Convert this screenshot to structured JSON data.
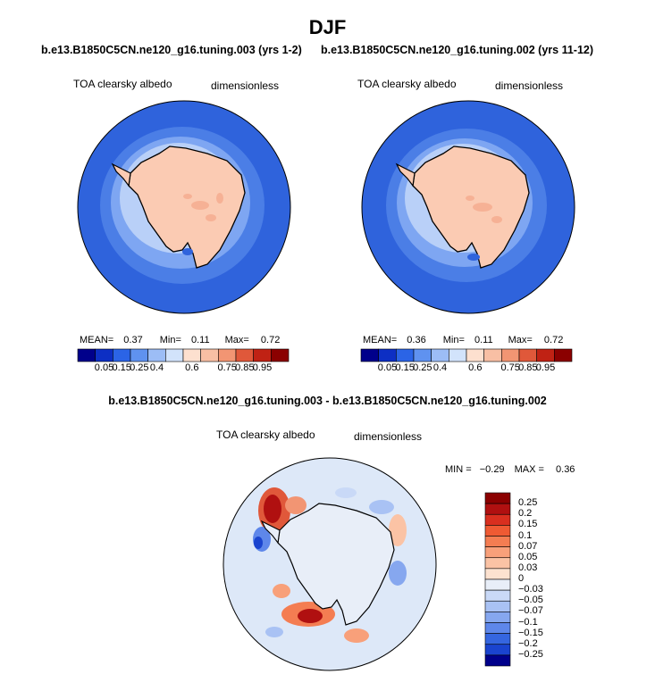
{
  "page": {
    "title": "DJF"
  },
  "panels": [
    {
      "case": "b.e13.B1850C5CN.ne120_g16.tuning.003 (yrs 1-2)",
      "variable": "TOA clearsky albedo",
      "units": "dimensionless",
      "stats": {
        "mean_label": "MEAN=",
        "mean": "0.37",
        "min_label": "Min=",
        "min": "0.11",
        "max_label": "Max=",
        "max": "0.72"
      }
    },
    {
      "case": "b.e13.B1850C5CN.ne120_g16.tuning.002 (yrs 11-12)",
      "variable": "TOA clearsky albedo",
      "units": "dimensionless",
      "stats": {
        "mean_label": "MEAN=",
        "mean": "0.36",
        "min_label": "Min=",
        "min": "0.11",
        "max_label": "Max=",
        "max": "0.72"
      }
    }
  ],
  "colorbar": {
    "labels": [
      "0.05",
      "0.15",
      "0.25",
      "0.4",
      "0.6",
      "0.75",
      "0.85",
      "0.95"
    ],
    "colors": [
      "#00008b",
      "#0d2fc4",
      "#2b64e6",
      "#5f92f0",
      "#9cbdf6",
      "#d2e3fb",
      "#fde0cf",
      "#f8bfa4",
      "#f29573",
      "#e0583a",
      "#c02214",
      "#8b0000"
    ]
  },
  "difference": {
    "title": "b.e13.B1850C5CN.ne120_g16.tuning.003 - b.e13.B1850C5CN.ne120_g16.tuning.002",
    "variable": "TOA clearsky albedo",
    "units": "dimensionless",
    "minmax": {
      "min_label": "MIN =",
      "min": "−0.29",
      "max_label": "MAX =",
      "max": "0.36"
    },
    "colorbar_labels": [
      "0.25",
      "0.2",
      "0.15",
      "0.1",
      "0.07",
      "0.05",
      "0.03",
      "0",
      "−0.03",
      "−0.05",
      "−0.07",
      "−0.1",
      "−0.15",
      "−0.2",
      "−0.25"
    ],
    "colorbar_colors": [
      "#8b0000",
      "#b01010",
      "#d92f1f",
      "#ef5a33",
      "#f47d52",
      "#f8a07a",
      "#fbc3a5",
      "#fde2d0",
      "#e8eef8",
      "#c9d9f7",
      "#a9c2f4",
      "#86a7ef",
      "#5e87ea",
      "#3566e0",
      "#1a44cf",
      "#00008b"
    ]
  },
  "map_colors": {
    "ocean": "#2f63dc",
    "land": "#fbcbb3",
    "land_dark": "#f6b195",
    "diff_background": "#dde8f8"
  }
}
